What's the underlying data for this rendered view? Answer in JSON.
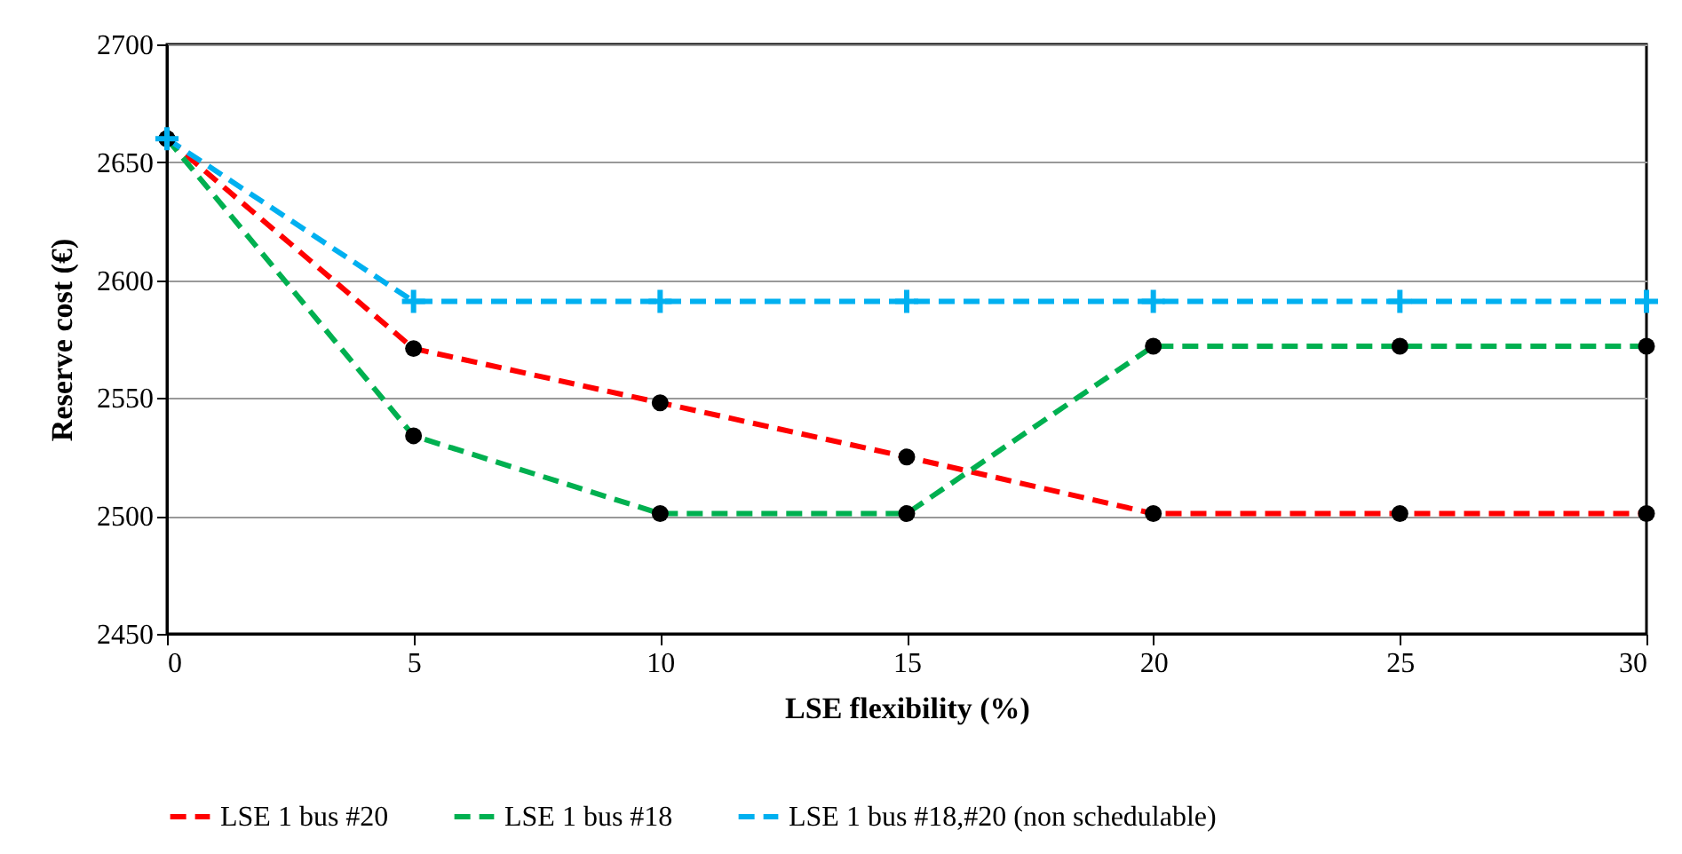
{
  "chart_data": {
    "type": "line",
    "xlabel": "LSE flexibility (%)",
    "ylabel": "Reserve cost (€)",
    "x": [
      0,
      5,
      10,
      15,
      20,
      25,
      30
    ],
    "series": [
      {
        "name": "LSE 1 bus #20",
        "color": "#ff0000",
        "marker": "circle",
        "values": [
          2660,
          2571,
          2548,
          2525,
          2501,
          2501,
          2501
        ]
      },
      {
        "name": "LSE 1 bus #18",
        "color": "#00b050",
        "marker": "circle",
        "values": [
          2660,
          2534,
          2501,
          2501,
          2572,
          2572,
          2572
        ]
      },
      {
        "name": "LSE 1 bus #18,#20 (non schedulable)",
        "color": "#00b0f0",
        "marker": "cross",
        "values": [
          2660,
          2591,
          2591,
          2591,
          2591,
          2591,
          2591
        ]
      }
    ],
    "xlim": [
      0,
      30
    ],
    "xticks": [
      0,
      5,
      10,
      15,
      20,
      25,
      30
    ],
    "ylim": [
      2450,
      2700
    ],
    "yticks": [
      2450,
      2500,
      2550,
      2600,
      2650,
      2700
    ],
    "grid": "y",
    "legend": "bottom",
    "line_style": "dashed"
  }
}
